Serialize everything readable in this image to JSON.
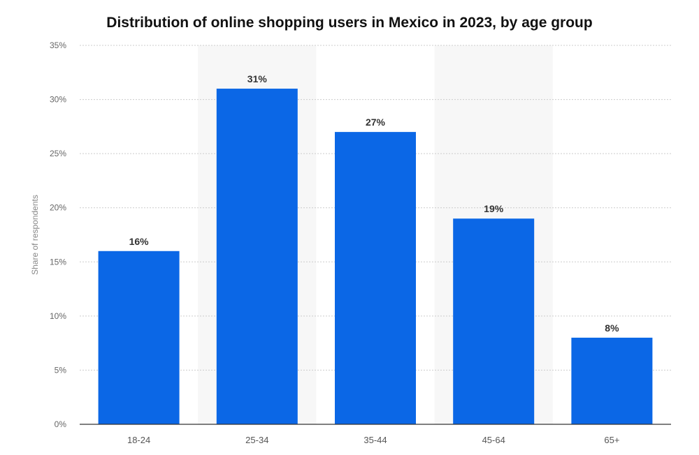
{
  "chart_data": {
    "type": "bar",
    "title": "Distribution of online shopping users in Mexico in 2023, by age group",
    "xlabel": "",
    "ylabel": "Share of respondents",
    "categories": [
      "18-24",
      "25-34",
      "35-44",
      "45-64",
      "65+"
    ],
    "values": [
      16,
      31,
      27,
      19,
      8
    ],
    "data_labels": [
      "16%",
      "31%",
      "27%",
      "19%",
      "8%"
    ],
    "ylim": [
      0,
      35
    ],
    "yticks": [
      0,
      5,
      10,
      15,
      20,
      25,
      30,
      35
    ],
    "ytick_labels": [
      "0%",
      "5%",
      "10%",
      "15%",
      "20%",
      "25%",
      "30%",
      "35%"
    ],
    "grid": true,
    "legend": "none"
  },
  "colors": {
    "bar": "#0b67e6",
    "band": "#f7f7f7",
    "grid": "#cccccc",
    "axis": "#333333"
  }
}
